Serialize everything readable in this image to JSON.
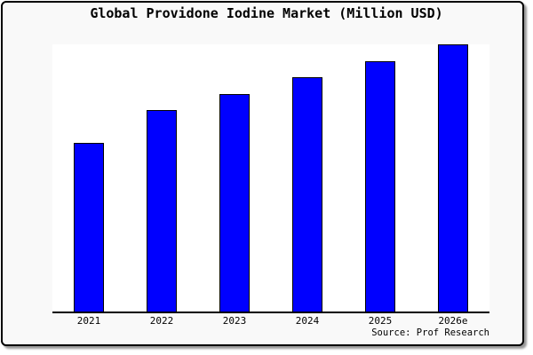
{
  "title": "Global Providone Iodine Market (Million USD)",
  "source_credit": "Source: Prof Research",
  "colors": {
    "bar_fill": "#0000ff",
    "bar_border": "#000000",
    "background": "#f9f9f9",
    "plot_background": "#ffffff",
    "frame_border": "#000000",
    "text": "#000000"
  },
  "chart_data": {
    "type": "bar",
    "title": "Global Providone Iodine Market (Million USD)",
    "categories": [
      "2021",
      "2022",
      "2023",
      "2024",
      "2025",
      "2026e"
    ],
    "values": [
      63.1,
      75.3,
      81.5,
      87.8,
      93.6,
      100
    ],
    "xlabel": "",
    "ylabel": "",
    "ylim": [
      0,
      100
    ],
    "y_axis_shown": false,
    "grid": false,
    "legend": false,
    "note": "No y-axis or data labels shown in source image; values are relative bar heights normalized to 2026e = 100, estimated from pixels."
  }
}
